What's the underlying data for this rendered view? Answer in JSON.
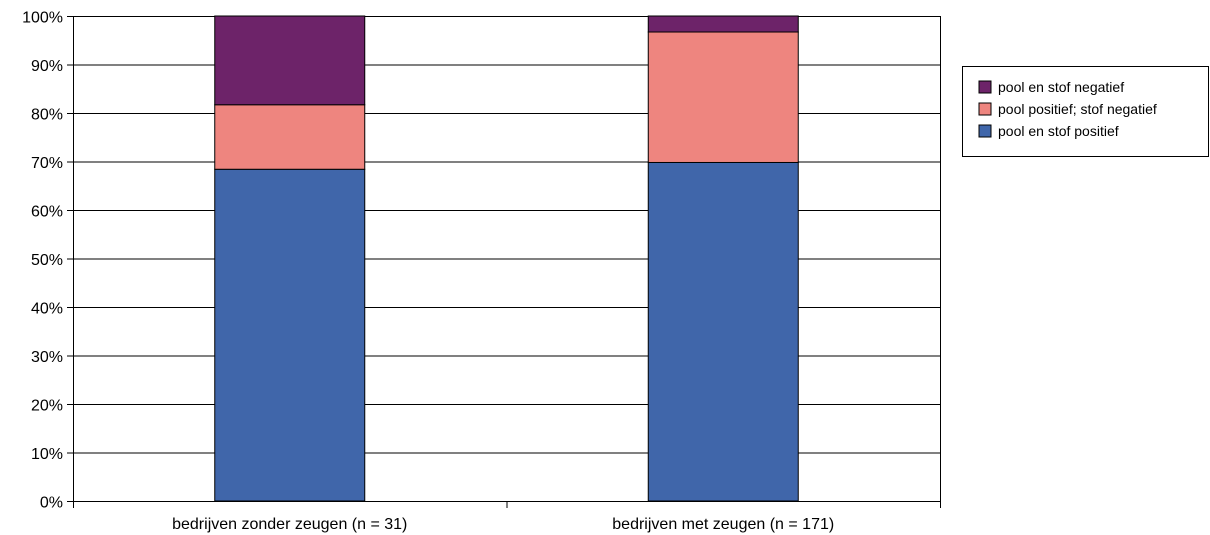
{
  "chart_data": {
    "type": "bar",
    "stacked": true,
    "y_axis_format": "percent",
    "categories": [
      "bedrijven zonder zeugen (n = 31)",
      "bedrijven met zeugen (n = 171)"
    ],
    "series": [
      {
        "name": "pool en stof positief",
        "color": "#4066AA",
        "values": [
          68.4,
          69.8
        ]
      },
      {
        "name": "pool positief; stof negatief",
        "color": "#EE857F",
        "values": [
          13.3,
          26.9
        ]
      },
      {
        "name": "pool en stof negatief",
        "color": "#6D2369",
        "values": [
          18.3,
          3.3
        ]
      }
    ],
    "ylim": [
      0,
      100
    ],
    "yticks": [
      0,
      10,
      20,
      30,
      40,
      50,
      60,
      70,
      80,
      90,
      100
    ],
    "ytick_labels": [
      "0%",
      "10%",
      "20%",
      "30%",
      "40%",
      "50%",
      "60%",
      "70%",
      "80%",
      "90%",
      "100%"
    ],
    "grid": true,
    "legend_position": "right",
    "legend_order": [
      "pool en stof negatief",
      "pool positief; stof negatief",
      "pool en stof positief"
    ],
    "title": "",
    "xlabel": "",
    "ylabel": ""
  }
}
